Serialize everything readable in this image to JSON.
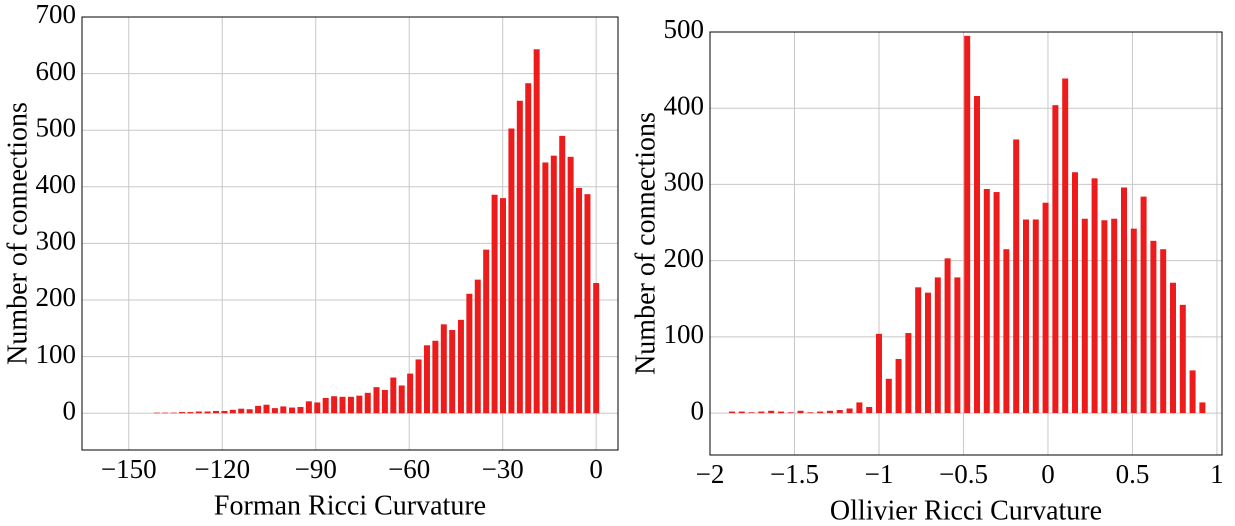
{
  "chart_data": [
    {
      "type": "bar",
      "xlabel": "Forman Ricci Curvature",
      "ylabel": "Number of connections",
      "color": "#ec1c1c",
      "grid": true,
      "x": [
        -141,
        -138.3,
        -135.6,
        -132.9,
        -130.2,
        -127.5,
        -124.7,
        -122,
        -119.3,
        -116.6,
        -113.9,
        -111.2,
        -108.5,
        -105.8,
        -103.1,
        -100.4,
        -97.6,
        -94.9,
        -92.2,
        -89.5,
        -86.8,
        -84.1,
        -81.4,
        -78.7,
        -76,
        -73.3,
        -70.5,
        -67.8,
        -65.1,
        -62.4,
        -59.7,
        -57,
        -54.3,
        -51.6,
        -48.9,
        -46.2,
        -43.4,
        -40.7,
        -38,
        -35.3,
        -32.6,
        -29.9,
        -27.2,
        -24.5,
        -21.8,
        -19.1,
        -16.3,
        -13.6,
        -10.9,
        -8.2,
        -5.5,
        -2.8,
        0
      ],
      "values": [
        1,
        1,
        1,
        2,
        2,
        3,
        3,
        4,
        4,
        6,
        8,
        7,
        13,
        15,
        9,
        12,
        10,
        11,
        21,
        19,
        27,
        30,
        29,
        29,
        31,
        36,
        46,
        41,
        63,
        49,
        70,
        95,
        120,
        128,
        157,
        147,
        165,
        211,
        236,
        289,
        386,
        380,
        503,
        552,
        583,
        643,
        443,
        455,
        490,
        453,
        398,
        387,
        230
      ],
      "xlim": [
        -165,
        7
      ],
      "ylim": [
        -65,
        700
      ],
      "xticks": [
        {
          "value": -150,
          "label": "−150"
        },
        {
          "value": -120,
          "label": "−120"
        },
        {
          "value": -90,
          "label": "−90"
        },
        {
          "value": -60,
          "label": "−60"
        },
        {
          "value": -30,
          "label": "−30"
        },
        0
      ],
      "yticks": [
        0,
        100,
        200,
        300,
        400,
        500,
        600,
        700
      ]
    },
    {
      "type": "bar",
      "xlabel": "Ollivier Ricci Curvature",
      "ylabel": "Number of connections",
      "color": "#ec1c1c",
      "grid": true,
      "x": [
        -1.87,
        -1.812,
        -1.754,
        -1.696,
        -1.638,
        -1.58,
        -1.522,
        -1.464,
        -1.406,
        -1.348,
        -1.29,
        -1.232,
        -1.174,
        -1.116,
        -1.058,
        -1,
        -0.942,
        -0.884,
        -0.826,
        -0.768,
        -0.71,
        -0.652,
        -0.594,
        -0.536,
        -0.478,
        -0.42,
        -0.362,
        -0.304,
        -0.246,
        -0.188,
        -0.13,
        -0.072,
        -0.014,
        0.044,
        0.102,
        0.16,
        0.218,
        0.276,
        0.334,
        0.392,
        0.45,
        0.508,
        0.566,
        0.624,
        0.682,
        0.74,
        0.798,
        0.856,
        0.914
      ],
      "values": [
        2,
        2,
        1,
        2,
        3,
        2,
        1,
        3,
        1,
        2,
        3,
        4,
        6,
        14,
        8,
        104,
        45,
        71,
        105,
        165,
        158,
        178,
        203,
        178,
        495,
        416,
        294,
        290,
        215,
        359,
        254,
        254,
        276,
        404,
        439,
        316,
        255,
        308,
        253,
        255,
        296,
        242,
        284,
        226,
        215,
        171,
        142,
        56,
        14
      ],
      "xlim": [
        -2,
        1.03
      ],
      "ylim": [
        -55,
        500
      ],
      "xticks": [
        {
          "value": -2,
          "label": "−2"
        },
        {
          "value": -1.5,
          "label": "−1.5"
        },
        {
          "value": -1,
          "label": "−1"
        },
        {
          "value": -0.5,
          "label": "−0.5"
        },
        0,
        0.5,
        1
      ],
      "yticks": [
        0,
        100,
        200,
        300,
        400,
        500
      ]
    }
  ]
}
